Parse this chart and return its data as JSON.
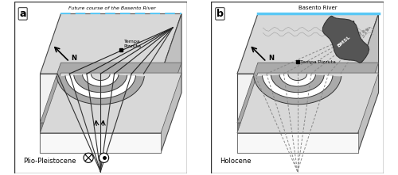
{
  "fig_width": 5.0,
  "fig_height": 2.21,
  "dpi": 100,
  "bg_color": "#ffffff",
  "panel_a": {
    "label": "a",
    "river_label": "Future course of the Basento River",
    "river_line_color": "#5bc8f5",
    "location_label": "Tempa\nPizzuta",
    "period_label": "Plio-Pleistocene",
    "top_face_color": "#d8d8d8",
    "front_face_color": "#f2f2f2",
    "side_face_color": "#c0c0c0",
    "dark_band_color": "#888888",
    "light_band_color": "#f5f5f5",
    "fan_gray_color": "#aaaaaa",
    "fault_color": "#222222"
  },
  "panel_b": {
    "label": "b",
    "river_label": "Basento River",
    "river_line_color": "#5bc8f5",
    "location_label": "Tempa Pizzuta",
    "period_label": "Holocene",
    "bmsl_label": "BMSL",
    "top_face_color": "#d8d8d8",
    "front_face_color": "#f2f2f2",
    "side_face_color": "#c0c0c0",
    "dark_band_color": "#888888",
    "light_band_color": "#f5f5f5",
    "fan_gray_color": "#aaaaaa",
    "fault_color": "#222222",
    "bmsl_body_color": "#555555"
  }
}
